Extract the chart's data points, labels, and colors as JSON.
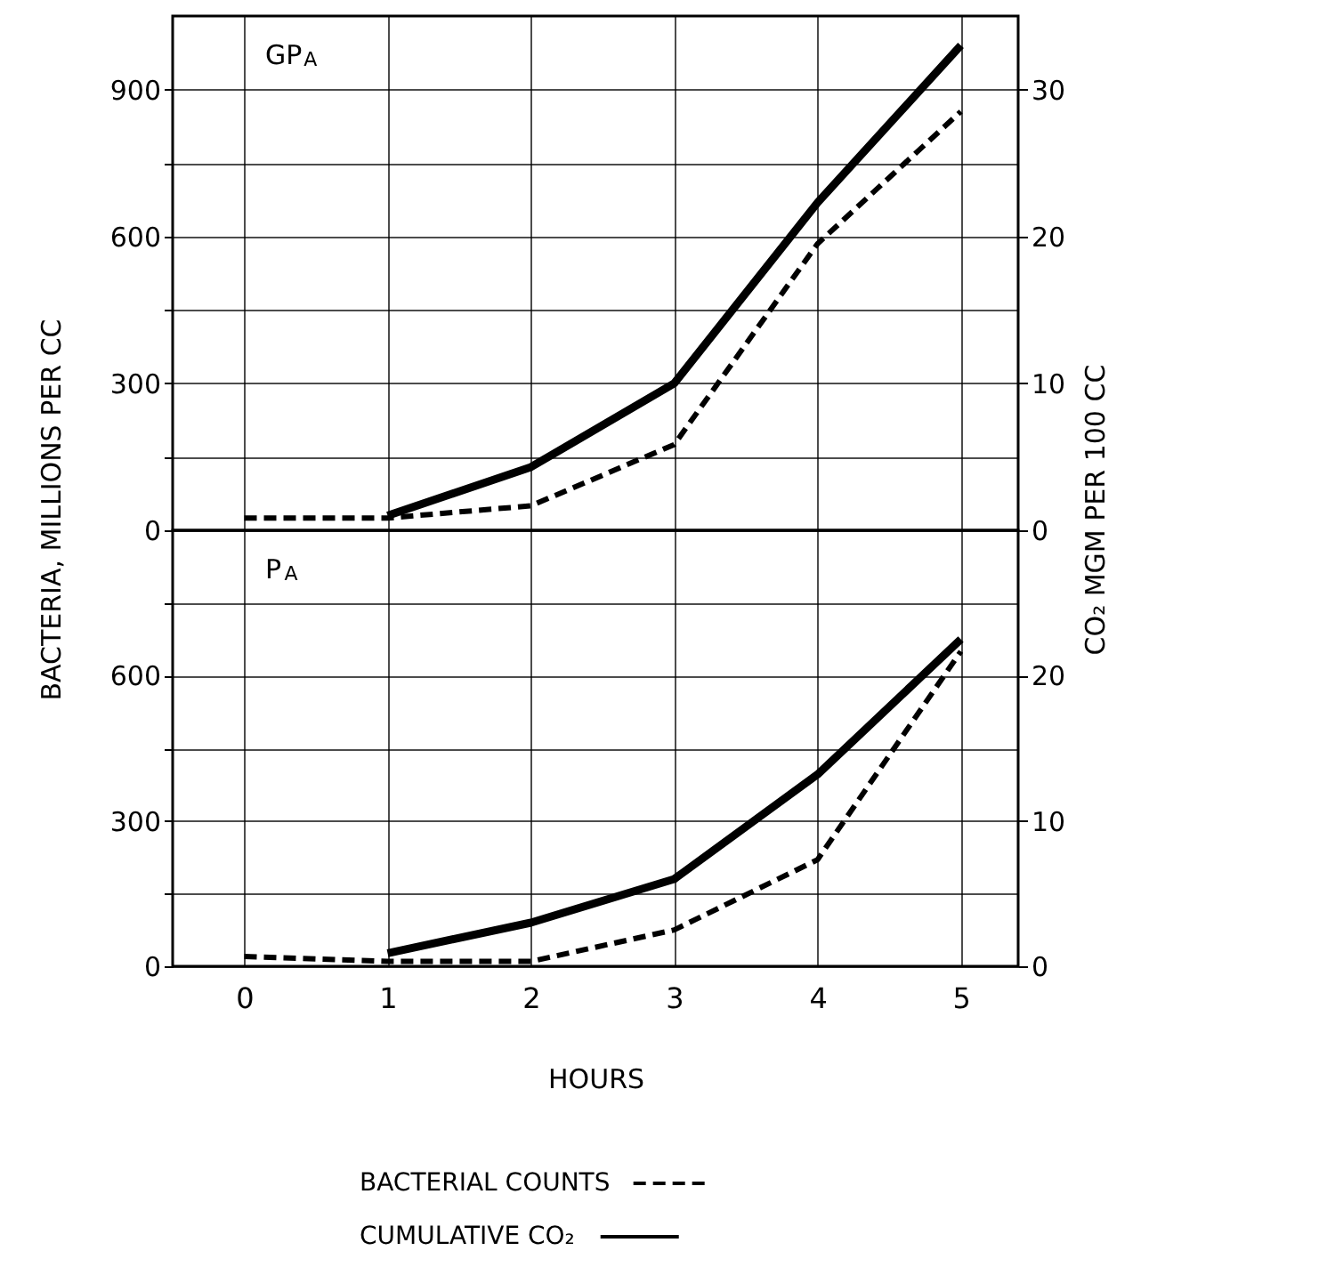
{
  "chart_data": [
    {
      "type": "line",
      "ylabel": "BACTERIA, MILLIONS PER CC",
      "y2label": "CO₂ MGM PER 100 CC",
      "annotations": [
        "GP$_{A}$"
      ],
      "xlim": [
        -0.5,
        5.4
      ],
      "xticks": [
        0,
        1,
        2,
        3,
        4,
        5
      ],
      "ylim": [
        0,
        1050
      ],
      "yticks": [
        0,
        {
          "value": 150,
          "label": null
        },
        300,
        {
          "value": 450,
          "label": null
        },
        600,
        {
          "value": 750,
          "label": null
        },
        900
      ],
      "y2lim": [
        0,
        35
      ],
      "y2ticks": [
        0,
        10,
        20,
        30
      ],
      "grid": true,
      "tick_labels": "y",
      "series": [
        {
          "color": "#000000",
          "line_style": "dashed",
          "x": [
            0,
            1,
            2,
            3,
            4,
            5
          ],
          "values": [
            25,
            25,
            50,
            175,
            585,
            855
          ]
        },
        {
          "color": "#000000",
          "line_style": "solid",
          "axis": "y2",
          "x": [
            1,
            2,
            3,
            4,
            5
          ],
          "values": [
            1,
            4.3,
            10,
            22.3,
            33
          ]
        }
      ]
    },
    {
      "type": "line",
      "xlabel": "HOURS",
      "annotations": [
        "P$_{A}$"
      ],
      "xlim": [
        -0.5,
        5.4
      ],
      "xticks": [
        0,
        1,
        2,
        3,
        4,
        5
      ],
      "ylim": [
        0,
        900
      ],
      "yticks": [
        0,
        {
          "value": 150,
          "label": null
        },
        300,
        {
          "value": 450,
          "label": null
        },
        600,
        {
          "value": 750,
          "label": null
        }
      ],
      "y2lim": [
        0,
        30
      ],
      "y2ticks": [
        0,
        10,
        20
      ],
      "grid": true,
      "legend": "bottom",
      "series": [
        {
          "name": "BACTERIAL COUNTS",
          "color": "#000000",
          "line_style": "dashed",
          "x": [
            0,
            1,
            2,
            3,
            4,
            5
          ],
          "values": [
            20,
            10,
            10,
            75,
            220,
            650
          ]
        },
        {
          "name": "CUMULATIVE CO₂",
          "color": "#000000",
          "line_style": "solid",
          "axis": "y2",
          "x": [
            1,
            2,
            3,
            4,
            5
          ],
          "values": [
            0.9,
            3,
            6,
            13.2,
            22.5
          ]
        }
      ]
    }
  ]
}
